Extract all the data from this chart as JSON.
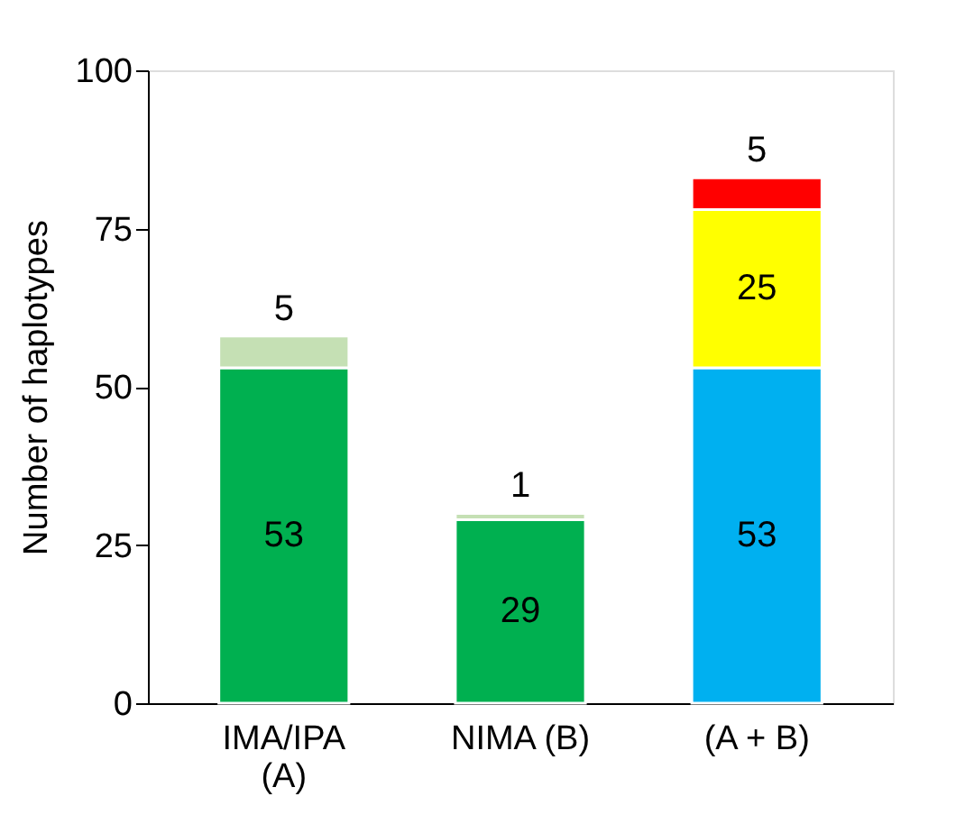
{
  "chart_data": {
    "type": "bar",
    "stacked": true,
    "ylabel": "Number of haplotypes",
    "categories": [
      "IMA/IPA\n(A)",
      "NIMA (B)",
      "(A + B)"
    ],
    "series": [
      {
        "colors": [
          "#00b050",
          "#00b050",
          "#00b0f0"
        ],
        "values": [
          53,
          29,
          53
        ]
      },
      {
        "colors": [
          "#c5e0b4",
          "#c5e0b4",
          "#ffff00"
        ],
        "values": [
          5,
          1,
          25
        ]
      },
      {
        "colors": [
          "#ff0000",
          "#ff0000",
          "#ff0000"
        ],
        "values": [
          null,
          null,
          5
        ]
      }
    ],
    "ylim": [
      0,
      100
    ],
    "yticks": [
      0,
      25,
      50,
      75,
      100
    ],
    "grid": false,
    "data_labels": true
  }
}
